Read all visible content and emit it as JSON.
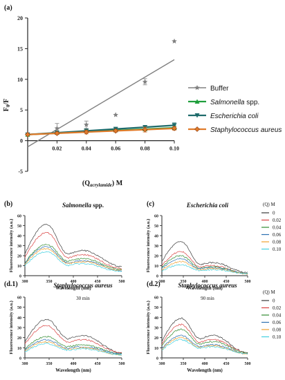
{
  "panel_a": {
    "label": "(a)",
    "ylabel": "F",
    "ylabel_sub": "0",
    "ylabel_tail": "/F",
    "xlabel_pre": "(Q",
    "xlabel_sub": "acrylamide",
    "xlabel_post": ") M"
  },
  "panels": {
    "b": {
      "label": "(b)",
      "title": "Salmonella",
      "title_suffix": " spp."
    },
    "c": {
      "label": "(c)",
      "title": "Escherichia coli"
    },
    "d1": {
      "label": "(d.1)",
      "title": "Staphylococcus aureus",
      "subtitle": "30 min"
    },
    "d2": {
      "label": "(d.2)",
      "title": "Staphylococcus aureus",
      "subtitle": "90 min"
    }
  },
  "spectra_axes": {
    "ylabel": "Fluorescence intensity (a.u.)",
    "xlabel": "Wavelength (nm)"
  },
  "legend_spectra_title": "(Q) M",
  "legend_spectra": [
    "0",
    "0.02",
    "0.04",
    "0.06",
    "0.08",
    "0.10"
  ],
  "colors": {
    "buffer": "#808080",
    "salmonella": "#1f9e3c",
    "ecoli": "#1e6b6b",
    "saureus": "#e07b2a",
    "spectra": [
      "#3a3a3a",
      "#d94040",
      "#2e8a2e",
      "#2a6fb0",
      "#f0a030",
      "#40d0e0"
    ]
  },
  "chart_data": [
    {
      "type": "scatter",
      "panel": "a",
      "xlabel": "(Q acrylamide) M",
      "ylabel": "F0/F",
      "xlim": [
        0,
        0.1
      ],
      "ylim": [
        -5,
        20
      ],
      "xticks": [
        "0.02",
        "0.04",
        "0.06",
        "0.08",
        "0.10"
      ],
      "yticks": [
        "-5",
        "0",
        "5",
        "10",
        "15",
        "20"
      ],
      "legend_placement": "right",
      "series": [
        {
          "name": "Buffer",
          "x": [
            0,
            0.02,
            0.04,
            0.06,
            0.08,
            0.1
          ],
          "y": [
            1.0,
            2.0,
            2.6,
            4.2,
            9.6,
            16.2
          ],
          "err": [
            0,
            0.8,
            0.6,
            0,
            0.5,
            0
          ],
          "fit": [
            -1.0,
            13.2
          ]
        },
        {
          "name": "Salmonella spp.",
          "italic_part": "Salmonella",
          "suffix": " spp.",
          "x": [
            0,
            0.02,
            0.04,
            0.06,
            0.08,
            0.1
          ],
          "y": [
            1.0,
            1.3,
            1.6,
            1.7,
            1.9,
            2.1
          ],
          "err": [
            0,
            0.2,
            0.2,
            0.2,
            0.3,
            0.3
          ],
          "fit": [
            1.0,
            2.1
          ]
        },
        {
          "name": "Escherichia coli",
          "italic_part": "Escherichia coli",
          "suffix": "",
          "x": [
            0,
            0.02,
            0.04,
            0.06,
            0.08,
            0.1
          ],
          "y": [
            1.0,
            1.3,
            1.6,
            1.9,
            2.2,
            2.5
          ],
          "err": [
            0,
            0.3,
            0.3,
            0.3,
            0.3,
            0.4
          ],
          "fit": [
            1.0,
            2.5
          ]
        },
        {
          "name": "Staphylococcus aureus",
          "italic_part": "Staphylococcus aureus",
          "suffix": "",
          "x": [
            0,
            0.02,
            0.04,
            0.06,
            0.08,
            0.1
          ],
          "y": [
            1.0,
            1.2,
            1.4,
            1.6,
            1.8,
            2.0
          ],
          "err": [
            0,
            0.2,
            0.3,
            0.2,
            0.4,
            0.3
          ],
          "fit": [
            1.0,
            2.0
          ]
        }
      ]
    },
    {
      "type": "line",
      "panel": "b",
      "xlim": [
        300,
        500
      ],
      "ylim": [
        0,
        60
      ],
      "xticks": [
        "300",
        "350",
        "400",
        "450",
        "500"
      ],
      "yticks": [
        "0",
        "10",
        "20",
        "30",
        "40",
        "50",
        "60"
      ],
      "series": [
        {
          "name": "0",
          "peak": 51,
          "shoulder": 25,
          "end": 9
        },
        {
          "name": "0.02",
          "peak": 43,
          "shoulder": 21,
          "end": 7
        },
        {
          "name": "0.04",
          "peak": 31,
          "shoulder": 17,
          "end": 6
        },
        {
          "name": "0.06",
          "peak": 29,
          "shoulder": 15,
          "end": 5
        },
        {
          "name": "0.08",
          "peak": 27,
          "shoulder": 14,
          "end": 5
        },
        {
          "name": "0.10",
          "peak": 24,
          "shoulder": 12,
          "end": 4
        }
      ]
    },
    {
      "type": "line",
      "panel": "c",
      "xlim": [
        300,
        500
      ],
      "ylim": [
        0,
        60
      ],
      "xticks": [
        "300",
        "350",
        "400",
        "450",
        "500"
      ],
      "yticks": [
        "0",
        "10",
        "20",
        "30",
        "40",
        "50",
        "60"
      ],
      "series": [
        {
          "name": "0",
          "peak": 34,
          "shoulder": 13,
          "end": 3
        },
        {
          "name": "0.02",
          "peak": 24,
          "shoulder": 10,
          "end": 2
        },
        {
          "name": "0.04",
          "peak": 20,
          "shoulder": 9,
          "end": 2
        },
        {
          "name": "0.06",
          "peak": 17,
          "shoulder": 8,
          "end": 2
        },
        {
          "name": "0.08",
          "peak": 14,
          "shoulder": 7,
          "end": 2
        },
        {
          "name": "0.10",
          "peak": 11,
          "shoulder": 6,
          "end": 2
        }
      ]
    },
    {
      "type": "line",
      "panel": "d1",
      "xlim": [
        300,
        500
      ],
      "ylim": [
        0,
        60
      ],
      "xticks": [
        "300",
        "350",
        "400",
        "450",
        "500"
      ],
      "yticks": [
        "0",
        "10",
        "20",
        "30",
        "40",
        "50",
        "60"
      ],
      "series": [
        {
          "name": "0",
          "peak": 38,
          "shoulder": 22,
          "end": 5
        },
        {
          "name": "0.02",
          "peak": 32,
          "shoulder": 18,
          "end": 5
        },
        {
          "name": "0.04",
          "peak": 21,
          "shoulder": 13,
          "end": 4
        },
        {
          "name": "0.06",
          "peak": 18,
          "shoulder": 11,
          "end": 4
        },
        {
          "name": "0.08",
          "peak": 16,
          "shoulder": 10,
          "end": 3
        },
        {
          "name": "0.10",
          "peak": 14,
          "shoulder": 9,
          "end": 3
        }
      ]
    },
    {
      "type": "line",
      "panel": "d2",
      "xlim": [
        300,
        500
      ],
      "ylim": [
        0,
        60
      ],
      "xticks": [
        "300",
        "350",
        "400",
        "450",
        "500"
      ],
      "yticks": [
        "0",
        "10",
        "20",
        "30",
        "40",
        "50",
        "60"
      ],
      "series": [
        {
          "name": "0",
          "peak": 39,
          "shoulder": 22,
          "end": 5
        },
        {
          "name": "0.02",
          "peak": 33,
          "shoulder": 18,
          "end": 5
        },
        {
          "name": "0.04",
          "peak": 28,
          "shoulder": 16,
          "end": 5
        },
        {
          "name": "0.06",
          "peak": 22,
          "shoulder": 13,
          "end": 4
        },
        {
          "name": "0.08",
          "peak": 20,
          "shoulder": 12,
          "end": 4
        },
        {
          "name": "0.10",
          "peak": 18,
          "shoulder": 11,
          "end": 4
        }
      ]
    }
  ]
}
